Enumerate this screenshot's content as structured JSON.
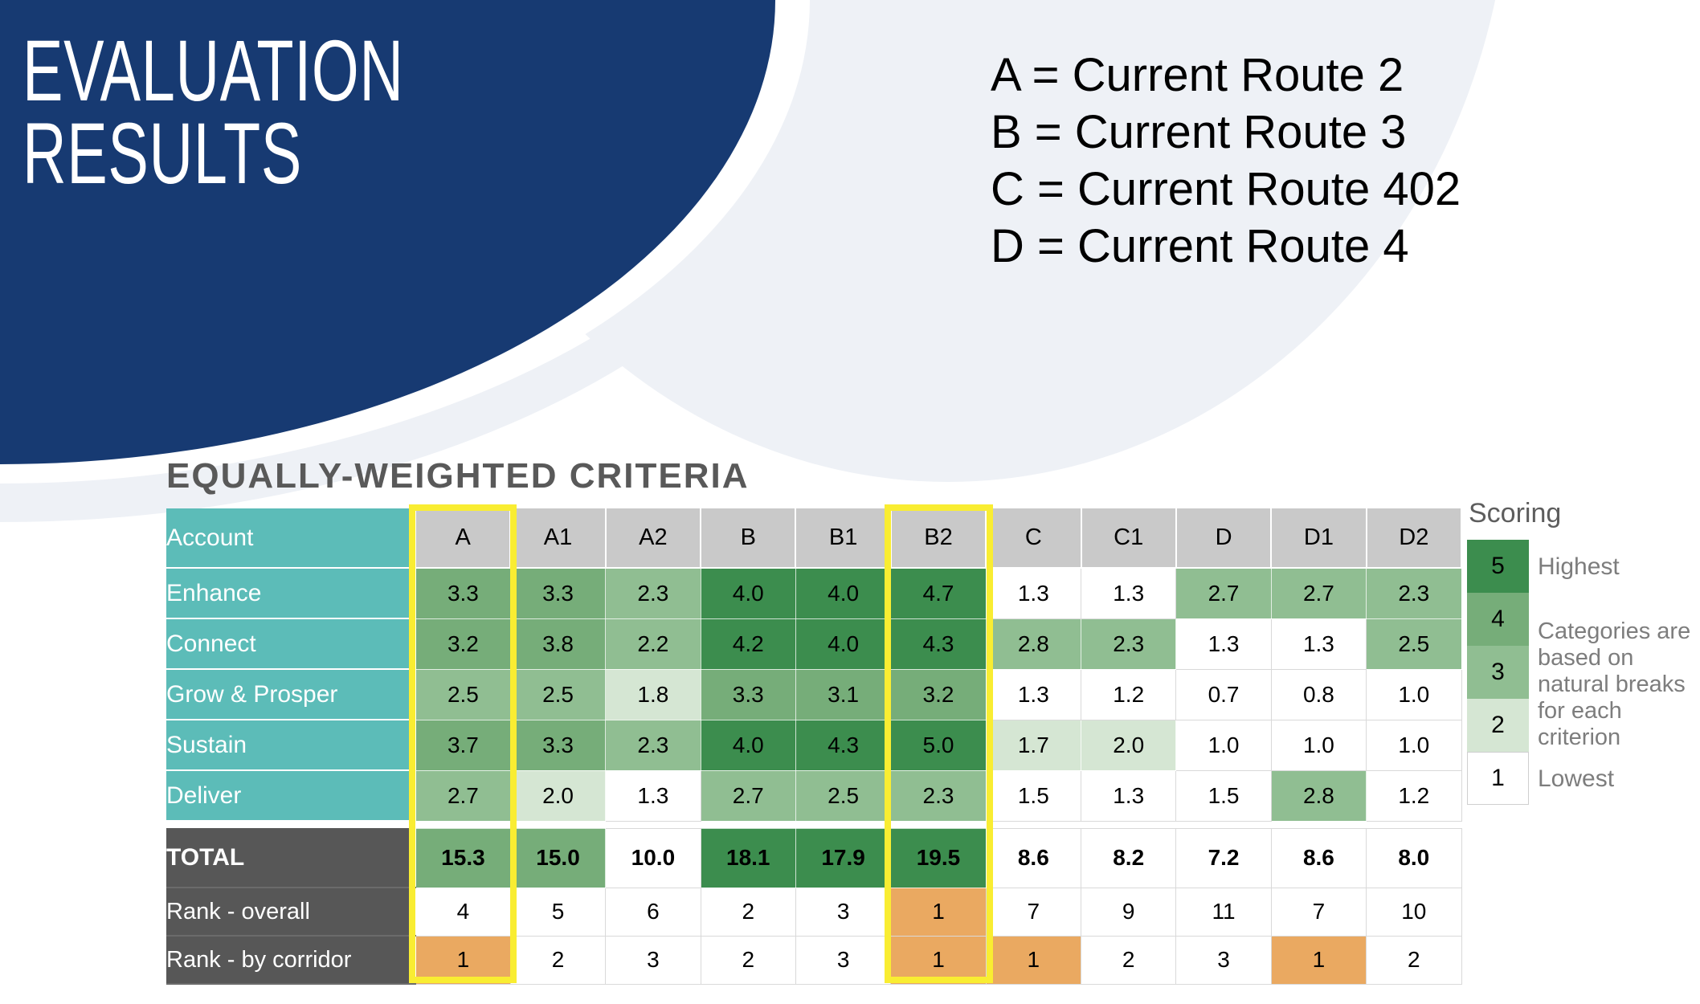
{
  "slide": {
    "title_line1": "EVALUATION",
    "title_line2": "RESULTS",
    "route_legend": [
      "A = Current Route 2",
      "B = Current Route 3",
      "C = Current Route 402",
      "D = Current Route 4"
    ],
    "section_heading": "EQUALLY-WEIGHTED CRITERIA"
  },
  "table": {
    "columns": [
      "Account",
      "A",
      "A1",
      "A2",
      "B",
      "B1",
      "B2",
      "C",
      "C1",
      "D",
      "D1",
      "D2"
    ],
    "highlighted_columns": [
      "A",
      "B2"
    ],
    "criteria_rows": [
      {
        "label": "Enhance",
        "cells": [
          [
            "3.3",
            4
          ],
          [
            "3.3",
            4
          ],
          [
            "2.3",
            3
          ],
          [
            "4.0",
            5
          ],
          [
            "4.0",
            5
          ],
          [
            "4.7",
            5
          ],
          [
            "1.3",
            1
          ],
          [
            "1.3",
            1
          ],
          [
            "2.7",
            3
          ],
          [
            "2.7",
            3
          ],
          [
            "2.3",
            3
          ]
        ]
      },
      {
        "label": "Connect",
        "cells": [
          [
            "3.2",
            4
          ],
          [
            "3.8",
            4
          ],
          [
            "2.2",
            3
          ],
          [
            "4.2",
            5
          ],
          [
            "4.0",
            5
          ],
          [
            "4.3",
            5
          ],
          [
            "2.8",
            3
          ],
          [
            "2.3",
            3
          ],
          [
            "1.3",
            1
          ],
          [
            "1.3",
            1
          ],
          [
            "2.5",
            3
          ]
        ]
      },
      {
        "label": "Grow & Prosper",
        "cells": [
          [
            "2.5",
            3
          ],
          [
            "2.5",
            3
          ],
          [
            "1.8",
            2
          ],
          [
            "3.3",
            4
          ],
          [
            "3.1",
            4
          ],
          [
            "3.2",
            4
          ],
          [
            "1.3",
            1
          ],
          [
            "1.2",
            1
          ],
          [
            "0.7",
            1
          ],
          [
            "0.8",
            1
          ],
          [
            "1.0",
            1
          ]
        ]
      },
      {
        "label": "Sustain",
        "cells": [
          [
            "3.7",
            4
          ],
          [
            "3.3",
            4
          ],
          [
            "2.3",
            3
          ],
          [
            "4.0",
            5
          ],
          [
            "4.3",
            5
          ],
          [
            "5.0",
            5
          ],
          [
            "1.7",
            2
          ],
          [
            "2.0",
            2
          ],
          [
            "1.0",
            1
          ],
          [
            "1.0",
            1
          ],
          [
            "1.0",
            1
          ]
        ]
      },
      {
        "label": "Deliver",
        "cells": [
          [
            "2.7",
            3
          ],
          [
            "2.0",
            2
          ],
          [
            "1.3",
            1
          ],
          [
            "2.7",
            3
          ],
          [
            "2.5",
            3
          ],
          [
            "2.3",
            3
          ],
          [
            "1.5",
            1
          ],
          [
            "1.3",
            1
          ],
          [
            "1.5",
            1
          ],
          [
            "2.8",
            3
          ],
          [
            "1.2",
            1
          ]
        ]
      }
    ],
    "total_row": {
      "label": "TOTAL",
      "cells": [
        [
          "15.3",
          4
        ],
        [
          "15.0",
          4
        ],
        [
          "10.0",
          1
        ],
        [
          "18.1",
          5
        ],
        [
          "17.9",
          5
        ],
        [
          "19.5",
          5
        ],
        [
          "8.6",
          1
        ],
        [
          "8.2",
          1
        ],
        [
          "7.2",
          1
        ],
        [
          "8.6",
          1
        ],
        [
          "8.0",
          1
        ]
      ]
    },
    "rank_rows": [
      {
        "label": "Rank - overall",
        "cells": [
          [
            "4",
            0
          ],
          [
            "5",
            0
          ],
          [
            "6",
            0
          ],
          [
            "2",
            0
          ],
          [
            "3",
            0
          ],
          [
            "1",
            9
          ],
          [
            "7",
            0
          ],
          [
            "9",
            0
          ],
          [
            "11",
            0
          ],
          [
            "7",
            0
          ],
          [
            "10",
            0
          ]
        ]
      },
      {
        "label": "Rank - by corridor",
        "cells": [
          [
            "1",
            9
          ],
          [
            "2",
            0
          ],
          [
            "3",
            0
          ],
          [
            "2",
            0
          ],
          [
            "3",
            0
          ],
          [
            "1",
            9
          ],
          [
            "1",
            9
          ],
          [
            "2",
            0
          ],
          [
            "3",
            0
          ],
          [
            "1",
            9
          ],
          [
            "2",
            0
          ]
        ]
      }
    ]
  },
  "scoring": {
    "title": "Scoring",
    "levels": [
      [
        "5",
        5
      ],
      [
        "4",
        4
      ],
      [
        "3",
        3
      ],
      [
        "2",
        2
      ],
      [
        "1",
        1
      ]
    ],
    "highest_label": "Highest",
    "lowest_label": "Lowest",
    "note": "Categories are based on natural breaks for each criterion"
  },
  "colors": {
    "navy": "#173a72",
    "swoosh_gray": "#eef1f6",
    "teal": "#5cbcb8",
    "header_gray": "#c9c9c9",
    "label_dark": "#575757",
    "heading_gray": "#595959",
    "score_5": "#3c8d4e",
    "score_4": "#76ad79",
    "score_3": "#90be92",
    "score_2": "#d5e6d3",
    "score_1": "#ffffff",
    "rank_highlight_orange": "#eaa961",
    "column_highlight_yellow": "#f9ed32"
  }
}
